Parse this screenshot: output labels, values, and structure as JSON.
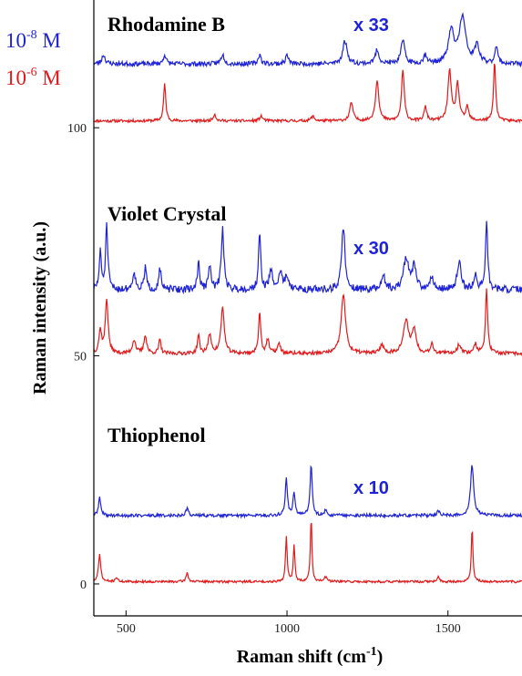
{
  "colors": {
    "high_conc": "#e31a1c",
    "low_conc": "#1f23d6",
    "axis": "#000000"
  },
  "chart_data": {
    "type": "line",
    "xlabel": "Raman shift (cm",
    "xlabel_sup": "-1",
    "xlabel_end": ")",
    "ylabel": "Raman intensity (a.u.)",
    "xlim": [
      400,
      1730
    ],
    "ylim": [
      -7,
      128
    ],
    "x_ticks": [
      500,
      1000,
      1500
    ],
    "y_ticks": [
      0,
      50,
      100
    ],
    "grid": false,
    "legend": [
      {
        "base": "10",
        "exp": "-8",
        "unit": " M",
        "color": "#1f23d6"
      },
      {
        "base": "10",
        "exp": "-6",
        "unit": " M",
        "color": "#e31a1c"
      }
    ],
    "samples": [
      {
        "label": "Rhodamine B",
        "scale_label": "x 33",
        "series": [
          {
            "name": "10-6 M",
            "color": "#e31a1c",
            "baseline": 101.5,
            "noise": 0.3,
            "seed": 11,
            "peaks": [
              [
                620,
                8,
                4
              ],
              [
                775,
                1.5,
                5
              ],
              [
                920,
                1,
                6
              ],
              [
                1080,
                1,
                6
              ],
              [
                1200,
                4,
                6
              ],
              [
                1280,
                9,
                6
              ],
              [
                1360,
                11,
                5
              ],
              [
                1430,
                3,
                5
              ],
              [
                1505,
                11,
                6
              ],
              [
                1530,
                8,
                6
              ],
              [
                1560,
                3,
                5
              ],
              [
                1645,
                13,
                4
              ]
            ]
          },
          {
            "name": "10-8 M",
            "color": "#1f23d6",
            "baseline": 114,
            "noise": 0.5,
            "seed": 23,
            "peaks": [
              [
                430,
                2,
                6
              ],
              [
                620,
                2,
                5
              ],
              [
                800,
                2,
                6
              ],
              [
                915,
                2,
                5
              ],
              [
                1000,
                2,
                5
              ],
              [
                1180,
                5,
                8
              ],
              [
                1280,
                3,
                7
              ],
              [
                1360,
                5,
                7
              ],
              [
                1430,
                2,
                6
              ],
              [
                1510,
                7,
                10
              ],
              [
                1545,
                10,
                12
              ],
              [
                1590,
                4,
                8
              ],
              [
                1650,
                4,
                5
              ]
            ]
          }
        ]
      },
      {
        "label": "Violet Crystal",
        "scale_label": "x 30",
        "series": [
          {
            "name": "10-6 M",
            "color": "#e31a1c",
            "baseline": 50.5,
            "noise": 0.4,
            "seed": 37,
            "peaks": [
              [
                420,
                5,
                5
              ],
              [
                440,
                12,
                5
              ],
              [
                525,
                3,
                6
              ],
              [
                560,
                4,
                5
              ],
              [
                605,
                3,
                4
              ],
              [
                725,
                4,
                4
              ],
              [
                760,
                4,
                6
              ],
              [
                800,
                10,
                6
              ],
              [
                915,
                9,
                4
              ],
              [
                940,
                3,
                5
              ],
              [
                975,
                2,
                6
              ],
              [
                1175,
                13,
                8
              ],
              [
                1295,
                2,
                6
              ],
              [
                1370,
                7,
                10
              ],
              [
                1395,
                5,
                7
              ],
              [
                1450,
                2,
                6
              ],
              [
                1535,
                2,
                7
              ],
              [
                1585,
                2,
                6
              ],
              [
                1620,
                14,
                4
              ]
            ]
          },
          {
            "name": "10-8 M",
            "color": "#1f23d6",
            "baseline": 64.5,
            "noise": 0.8,
            "seed": 51,
            "peaks": [
              [
                420,
                8,
                4
              ],
              [
                440,
                14,
                4
              ],
              [
                525,
                4,
                5
              ],
              [
                560,
                5,
                4
              ],
              [
                605,
                5,
                4
              ],
              [
                725,
                6,
                4
              ],
              [
                760,
                5,
                5
              ],
              [
                800,
                13,
                5
              ],
              [
                915,
                12,
                4
              ],
              [
                950,
                4,
                6
              ],
              [
                980,
                4,
                6
              ],
              [
                1000,
                3,
                6
              ],
              [
                1175,
                14,
                6
              ],
              [
                1300,
                3,
                6
              ],
              [
                1370,
                7,
                9
              ],
              [
                1395,
                5,
                7
              ],
              [
                1450,
                3,
                6
              ],
              [
                1535,
                6,
                7
              ],
              [
                1585,
                3,
                6
              ],
              [
                1620,
                15,
                4
              ]
            ]
          }
        ]
      },
      {
        "label": "Thiophenol",
        "scale_label": "x 10",
        "series": [
          {
            "name": "10-6 M",
            "color": "#e31a1c",
            "baseline": 0.5,
            "noise": 0.25,
            "seed": 71,
            "peaks": [
              [
                418,
                6,
                4
              ],
              [
                470,
                1,
                4
              ],
              [
                690,
                2,
                4
              ],
              [
                998,
                10,
                3
              ],
              [
                1022,
                8,
                3
              ],
              [
                1075,
                14,
                3
              ],
              [
                1120,
                1,
                5
              ],
              [
                1470,
                1,
                4
              ],
              [
                1575,
                12,
                3
              ]
            ]
          },
          {
            "name": "10-8 M",
            "color": "#1f23d6",
            "baseline": 15,
            "noise": 0.35,
            "seed": 89,
            "peaks": [
              [
                418,
                4,
                4
              ],
              [
                690,
                1.5,
                5
              ],
              [
                998,
                8,
                4
              ],
              [
                1022,
                5,
                4
              ],
              [
                1075,
                11,
                4
              ],
              [
                1120,
                1,
                6
              ],
              [
                1470,
                1,
                5
              ],
              [
                1575,
                11,
                6
              ]
            ]
          }
        ]
      }
    ]
  }
}
